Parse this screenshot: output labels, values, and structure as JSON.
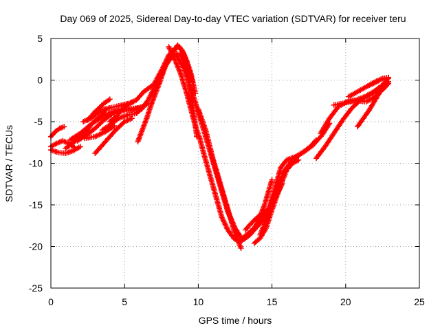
{
  "chart_data": {
    "type": "scatter",
    "title": "Day 069 of 2025, Sidereal Day-to-day VTEC variation (SDTVAR) for receiver teru",
    "xlabel": "GPS time / hours",
    "ylabel": "SDTVAR / TECUs",
    "xlim": [
      0,
      25
    ],
    "ylim": [
      -25,
      5
    ],
    "x_ticks": [
      0,
      5,
      10,
      15,
      20,
      25
    ],
    "y_ticks": [
      -25,
      -20,
      -15,
      -10,
      -5,
      0,
      5
    ],
    "x_tick_labels": [
      "0",
      "5",
      "10",
      "15",
      "20",
      "25"
    ],
    "y_tick_labels": [
      "-25",
      "-20",
      "-15",
      "-10",
      "-5",
      "0",
      "5"
    ],
    "grid": true,
    "legend": "none",
    "color": "#ff0000",
    "marker": "plus",
    "series": [
      {
        "x": [
          0.0,
          0.3,
          0.6,
          0.9
        ],
        "y": [
          -6.8,
          -6.2,
          -5.8,
          -5.6
        ]
      },
      {
        "x": [
          0.0,
          0.4,
          0.8,
          1.2,
          1.6
        ],
        "y": [
          -8.0,
          -7.6,
          -7.3,
          -7.6,
          -8.1
        ]
      },
      {
        "x": [
          0.0,
          0.5,
          1.0,
          1.5,
          2.0
        ],
        "y": [
          -8.4,
          -8.7,
          -8.8,
          -8.5,
          -8.0
        ]
      },
      {
        "x": [
          1.0,
          1.6,
          2.2,
          2.8,
          3.4,
          3.7
        ],
        "y": [
          -8.2,
          -7.4,
          -6.6,
          -5.2,
          -4.2,
          -3.6
        ]
      },
      {
        "x": [
          1.3,
          2.0,
          2.8,
          3.5,
          4.2,
          4.8,
          5.5,
          6.2,
          6.6,
          6.8
        ],
        "y": [
          -7.2,
          -6.4,
          -5.2,
          -4.4,
          -3.8,
          -3.5,
          -3.6,
          -3.2,
          -2.8,
          -2.8
        ]
      },
      {
        "x": [
          1.8,
          2.4,
          3.0,
          3.6,
          4.2,
          5.0,
          5.6,
          6.1
        ],
        "y": [
          -7.3,
          -6.6,
          -5.8,
          -4.8,
          -4.0,
          -3.6,
          -3.4,
          -3.3
        ]
      },
      {
        "x": [
          2.2,
          2.8,
          3.4,
          4.1,
          4.6,
          5.3,
          5.8,
          6.3,
          7.0,
          7.6,
          8.0,
          8.4,
          8.7,
          9.0,
          9.3,
          9.6
        ],
        "y": [
          -5.0,
          -4.5,
          -3.6,
          -3.3,
          -3.1,
          -2.8,
          -2.4,
          -1.4,
          -0.5,
          1.5,
          3.0,
          3.8,
          4.0,
          3.2,
          1.6,
          -0.2
        ]
      },
      {
        "x": [
          2.3,
          3.0,
          3.7,
          4.3
        ],
        "y": [
          -7.0,
          -6.8,
          -6.2,
          -5.5
        ]
      },
      {
        "x": [
          2.5,
          3.0,
          3.6,
          4.0
        ],
        "y": [
          -4.8,
          -3.8,
          -2.8,
          -2.3
        ]
      },
      {
        "x": [
          3.0,
          3.4,
          3.8,
          4.4,
          5.0,
          5.5
        ],
        "y": [
          -8.8,
          -8.0,
          -7.2,
          -6.0,
          -5.0,
          -4.6
        ]
      },
      {
        "x": [
          3.5,
          4.0,
          4.6,
          5.2,
          5.8,
          6.2,
          6.6,
          7.0,
          7.4,
          7.8,
          8.2,
          8.5,
          8.8,
          9.1,
          9.4,
          9.7,
          9.9
        ],
        "y": [
          -6.0,
          -5.4,
          -4.6,
          -4.2,
          -4.0,
          -3.4,
          -2.4,
          -1.0,
          0.2,
          1.8,
          2.8,
          3.2,
          3.0,
          1.8,
          -0.5,
          -4.0,
          -6.8
        ]
      },
      {
        "x": [
          4.0,
          4.4,
          4.8,
          5.2,
          5.6
        ],
        "y": [
          -5.0,
          -4.4,
          -3.6,
          -3.0,
          -2.6
        ]
      },
      {
        "x": [
          5.9,
          6.2,
          6.5,
          6.8,
          7.1,
          7.4,
          7.7,
          8.0,
          8.3,
          8.6,
          8.9,
          9.2,
          9.5,
          9.8
        ],
        "y": [
          -7.4,
          -6.0,
          -4.6,
          -3.0,
          -1.6,
          -0.2,
          1.4,
          2.6,
          3.4,
          4.2,
          3.6,
          2.4,
          0.8,
          -1.6
        ]
      },
      {
        "x": [
          8.0,
          8.4,
          8.8,
          9.2,
          9.5,
          9.8,
          10.1,
          10.4,
          10.8,
          11.2,
          11.6,
          12.0,
          12.4,
          12.8,
          13.2,
          13.6,
          14.0,
          14.4,
          14.8,
          15.2,
          15.6,
          16.0,
          16.6,
          17.2,
          17.8,
          18.4,
          18.9
        ],
        "y": [
          4.0,
          2.5,
          0.8,
          -1.5,
          -3.5,
          -5.5,
          -7.0,
          -9.0,
          -11.5,
          -14.0,
          -16.5,
          -18.0,
          -19.0,
          -19.5,
          -19.0,
          -18.4,
          -17.6,
          -16.8,
          -15.6,
          -13.0,
          -10.5,
          -9.6,
          -9.2,
          -8.6,
          -7.8,
          -6.6,
          -5.2
        ]
      },
      {
        "x": [
          8.5,
          9.0,
          9.5,
          10.0,
          10.5,
          11.0,
          11.5,
          12.0,
          12.5,
          13.0,
          13.5,
          14.0,
          14.5,
          15.0
        ],
        "y": [
          3.0,
          1.5,
          -1.0,
          -3.8,
          -6.8,
          -9.8,
          -12.8,
          -15.8,
          -17.8,
          -19.2,
          -18.6,
          -17.2,
          -15.0,
          -12.0
        ]
      },
      {
        "x": [
          10.0,
          10.5,
          11.0,
          11.5,
          12.0,
          12.5,
          12.9
        ],
        "y": [
          -3.5,
          -6.0,
          -9.5,
          -12.5,
          -15.5,
          -18.5,
          -20.2
        ]
      },
      {
        "x": [
          13.0,
          13.4,
          13.8,
          14.2,
          14.6,
          15.0,
          15.4,
          15.8,
          16.4,
          17.0,
          17.6,
          18.0
        ],
        "y": [
          -19.0,
          -18.4,
          -17.8,
          -17.0,
          -16.2,
          -15.0,
          -13.2,
          -11.0,
          -9.6,
          -8.8,
          -8.0,
          -7.2
        ]
      },
      {
        "x": [
          13.2,
          13.6,
          14.0,
          14.4,
          14.8,
          15.2,
          15.6,
          16.0,
          16.4,
          16.8
        ],
        "y": [
          -18.0,
          -17.2,
          -16.5,
          -16.0,
          -15.4,
          -14.2,
          -12.6,
          -10.8,
          -10.0,
          -9.6
        ]
      },
      {
        "x": [
          13.8,
          14.2,
          14.6,
          15.0,
          15.4,
          15.7
        ],
        "y": [
          -19.6,
          -19.0,
          -17.8,
          -15.6,
          -13.6,
          -12.4
        ]
      },
      {
        "x": [
          14.2,
          14.6,
          15.0,
          15.4,
          15.8
        ],
        "y": [
          -18.6,
          -16.8,
          -14.6,
          -12.6,
          -11.2
        ]
      },
      {
        "x": [
          18.0,
          18.6,
          19.2,
          19.8,
          20.4,
          21.0,
          21.6,
          22.2,
          22.6,
          22.9
        ],
        "y": [
          -9.4,
          -8.0,
          -6.4,
          -4.8,
          -3.4,
          -2.4,
          -1.8,
          -1.2,
          -0.6,
          -0.2
        ]
      },
      {
        "x": [
          18.3,
          18.9,
          19.5,
          20.1,
          20.7,
          21.3,
          21.9,
          22.5,
          22.9
        ],
        "y": [
          -6.4,
          -4.6,
          -3.2,
          -2.6,
          -2.4,
          -2.0,
          -1.4,
          -0.6,
          0.2
        ]
      },
      {
        "x": [
          19.2,
          19.8,
          20.3,
          20.8,
          21.4,
          22.0,
          22.6,
          22.9
        ],
        "y": [
          -3.0,
          -2.8,
          -2.6,
          -2.5,
          -2.6,
          -2.0,
          -1.0,
          -0.4
        ]
      },
      {
        "x": [
          20.2,
          20.8,
          21.4,
          22.0,
          22.5,
          22.9
        ],
        "y": [
          -2.0,
          -1.4,
          -0.8,
          -0.3,
          0.2,
          0.3
        ]
      },
      {
        "x": [
          20.8,
          21.2,
          21.6,
          22.0,
          22.4,
          22.9
        ],
        "y": [
          -5.6,
          -4.6,
          -3.6,
          -2.4,
          -1.2,
          -0.4
        ]
      },
      {
        "x": [
          21.6,
          22.0,
          22.4,
          22.9
        ],
        "y": [
          -0.6,
          -0.2,
          0.1,
          0.3
        ]
      }
    ]
  }
}
